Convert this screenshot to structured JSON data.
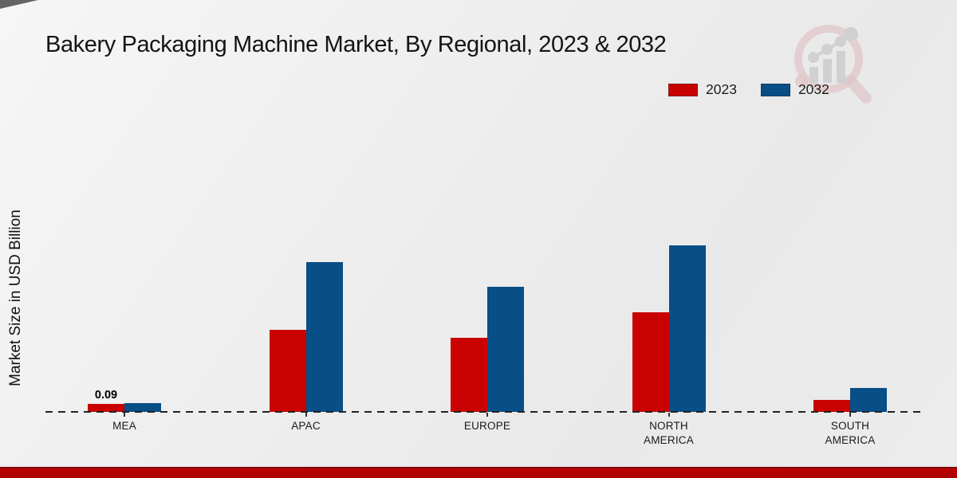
{
  "title": "Bakery Packaging Machine Market, By Regional, 2023 & 2032",
  "ylabel": "Market Size in USD Billion",
  "colors": {
    "series_2023_red": "#c90101",
    "series_2032_blue": "#084e87",
    "footer_band_red": "#b50303",
    "background_gray": "#ededed",
    "watermark_pink": "#d9aaae",
    "watermark_gray": "#bdbdc2"
  },
  "watermark": {
    "icon": "magnifier-bar-chart-logo"
  },
  "chart_data": {
    "type": "bar",
    "title": "Bakery Packaging Machine Market, By Regional, 2023 & 2032",
    "xlabel": "",
    "ylabel": "Market Size in USD Billion",
    "categories": [
      "MEA",
      "APAC",
      "EUROPE",
      "NORTH AMERICA",
      "SOUTH AMERICA"
    ],
    "series": [
      {
        "name": "2023",
        "color": "#c90101",
        "values": [
          0.09,
          0.92,
          0.83,
          1.12,
          0.13
        ]
      },
      {
        "name": "2032",
        "color": "#084e87",
        "values": [
          0.1,
          1.68,
          1.4,
          1.87,
          0.27
        ]
      }
    ],
    "bar_labels": [
      {
        "category_index": 0,
        "series_index": 0,
        "text": "0.09"
      }
    ],
    "ylim": [
      0,
      2.1
    ],
    "grid": false,
    "y_axis_ticks_visible": false,
    "baseline_style": "dashed",
    "legend_position": "top-right"
  }
}
